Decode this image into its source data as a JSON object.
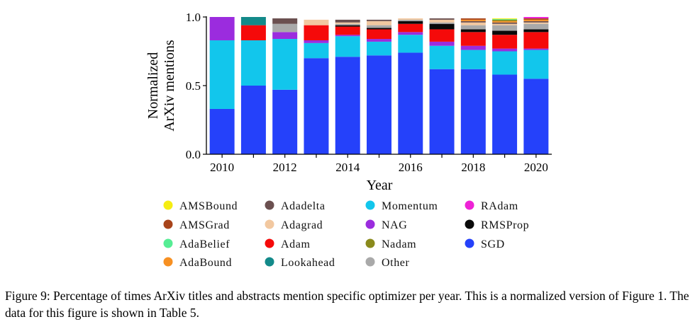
{
  "chart_data": {
    "type": "bar",
    "stacked": true,
    "xlabel": "Year",
    "ylabel_lines": [
      "Normalized",
      "ArXiv mentions"
    ],
    "ylim": [
      0,
      1.0
    ],
    "yticks": [
      "0.0",
      "0.5",
      "1.0"
    ],
    "ytick_values": [
      0,
      0.5,
      1.0
    ],
    "categories": [
      "2010",
      "2011",
      "2012",
      "2013",
      "2014",
      "2015",
      "2016",
      "2017",
      "2018",
      "2019",
      "2020"
    ],
    "xtick_labels": [
      "2010",
      "2012",
      "2014",
      "2016",
      "2018",
      "2020"
    ],
    "legend_placement": "below",
    "series": [
      {
        "name": "SGD",
        "color": "#2541fa",
        "values": [
          0.33,
          0.5,
          0.47,
          0.7,
          0.71,
          0.72,
          0.74,
          0.62,
          0.62,
          0.58,
          0.55
        ]
      },
      {
        "name": "Momentum",
        "color": "#12c6ec",
        "values": [
          0.5,
          0.33,
          0.37,
          0.11,
          0.15,
          0.1,
          0.13,
          0.17,
          0.14,
          0.17,
          0.21
        ]
      },
      {
        "name": "NAG",
        "color": "#9b2cde",
        "values": [
          0.17,
          0.0,
          0.05,
          0.02,
          0.01,
          0.02,
          0.02,
          0.03,
          0.03,
          0.02,
          0.01
        ]
      },
      {
        "name": "Adam",
        "color": "#f50a0a",
        "values": [
          0.0,
          0.11,
          0.0,
          0.11,
          0.06,
          0.07,
          0.06,
          0.09,
          0.1,
          0.1,
          0.12
        ]
      },
      {
        "name": "RMSProp",
        "color": "#0a0a0a",
        "values": [
          0.0,
          0.0,
          0.0,
          0.0,
          0.01,
          0.01,
          0.02,
          0.04,
          0.02,
          0.03,
          0.02
        ]
      },
      {
        "name": "Other",
        "color": "#a9a9a9",
        "values": [
          0.0,
          0.0,
          0.06,
          0.0,
          0.01,
          0.02,
          0.01,
          0.01,
          0.03,
          0.04,
          0.04
        ]
      },
      {
        "name": "Adagrad",
        "color": "#f2c8a0",
        "values": [
          0.0,
          0.0,
          0.0,
          0.04,
          0.01,
          0.03,
          0.01,
          0.02,
          0.02,
          0.01,
          0.01
        ]
      },
      {
        "name": "Adadelta",
        "color": "#6b5050",
        "values": [
          0.0,
          0.0,
          0.04,
          0.0,
          0.02,
          0.01,
          0.0,
          0.01,
          0.01,
          0.01,
          0.01
        ]
      },
      {
        "name": "Lookahead",
        "color": "#138a8a",
        "values": [
          0.0,
          0.06,
          0.0,
          0.0,
          0.0,
          0.0,
          0.0,
          0.0,
          0.0,
          0.0,
          0.0
        ]
      },
      {
        "name": "AdaBound",
        "color": "#f79022",
        "values": [
          0.0,
          0.0,
          0.0,
          0.0,
          0.0,
          0.0,
          0.0,
          0.0,
          0.01,
          0.01,
          0.01
        ]
      },
      {
        "name": "AMSGrad",
        "color": "#a8441a",
        "values": [
          0.0,
          0.0,
          0.0,
          0.0,
          0.0,
          0.0,
          0.0,
          0.0,
          0.01,
          0.0,
          0.01
        ]
      },
      {
        "name": "NAdam",
        "color": "#8a8a1c",
        "values": [
          0.0,
          0.0,
          0.0,
          0.0,
          0.0,
          0.0,
          0.0,
          0.0,
          0.0,
          0.01,
          0.0
        ]
      },
      {
        "name": "AdaBelief",
        "color": "#56ed94",
        "values": [
          0.0,
          0.0,
          0.0,
          0.0,
          0.0,
          0.0,
          0.0,
          0.0,
          0.0,
          0.005,
          0.0
        ]
      },
      {
        "name": "AMSBound",
        "color": "#f5ed12",
        "values": [
          0.0,
          0.0,
          0.0,
          0.0,
          0.0,
          0.0,
          0.0,
          0.0,
          0.0,
          0.005,
          0.0
        ]
      },
      {
        "name": "RAdam",
        "color": "#ee22d6",
        "values": [
          0.0,
          0.0,
          0.0,
          0.0,
          0.0,
          0.0,
          0.0,
          0.0,
          0.0,
          0.0,
          0.01
        ]
      }
    ],
    "legend": [
      [
        {
          "label": "AMSBound",
          "series": "AMSBound"
        },
        {
          "label": "Adadelta",
          "series": "Adadelta"
        },
        {
          "label": "Momentum",
          "series": "Momentum"
        },
        {
          "label": "RAdam",
          "series": "RAdam"
        }
      ],
      [
        {
          "label": "AMSGrad",
          "series": "AMSGrad"
        },
        {
          "label": "Adagrad",
          "series": "Adagrad"
        },
        {
          "label": "NAG",
          "series": "NAG"
        },
        {
          "label": "RMSProp",
          "series": "RMSProp"
        }
      ],
      [
        {
          "label": "AdaBelief",
          "series": "AdaBelief"
        },
        {
          "label": "Adam",
          "series": "Adam"
        },
        {
          "label": "Nadam",
          "series": "NAdam"
        },
        {
          "label": "SGD",
          "series": "SGD"
        }
      ],
      [
        {
          "label": "AdaBound",
          "series": "AdaBound"
        },
        {
          "label": "Lookahead",
          "series": "Lookahead"
        },
        {
          "label": "Other",
          "series": "Other"
        }
      ]
    ]
  },
  "caption": "Figure 9: Percentage of times ArXiv titles and abstracts mention specific optimizer per year. This is a normalized version of Figure 1. The data for this figure is shown in Table 5."
}
